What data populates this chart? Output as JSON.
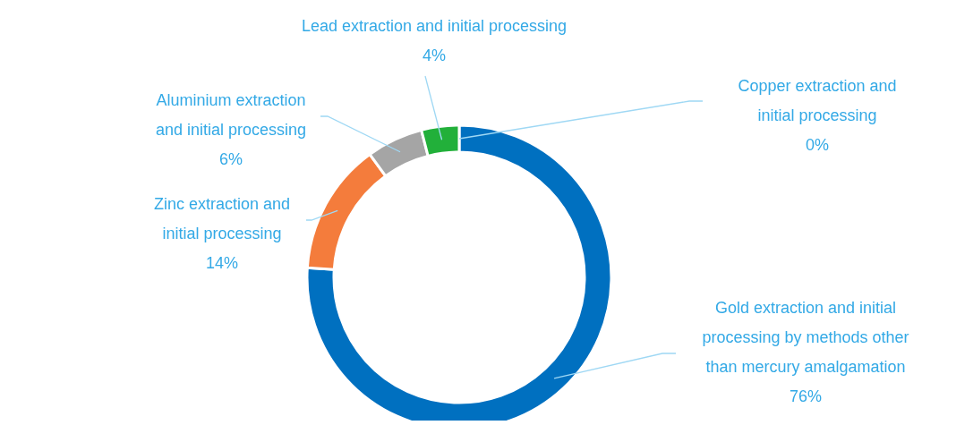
{
  "chart_data": {
    "type": "donut",
    "categories": [
      "Copper extraction and initial processing",
      "Gold extraction and initial processing by methods other than mercury amalgamation",
      "Zinc extraction and initial processing",
      "Aluminium extraction and initial processing",
      "Lead extraction and initial processing"
    ],
    "values": [
      0,
      76,
      14,
      6,
      4
    ],
    "value_labels": [
      "0%",
      "76%",
      "14%",
      "6%",
      "4%"
    ],
    "colors": [
      "#c55a11",
      "#0070c0",
      "#f47c3c",
      "#a5a5a5",
      "#22b03a"
    ]
  }
}
